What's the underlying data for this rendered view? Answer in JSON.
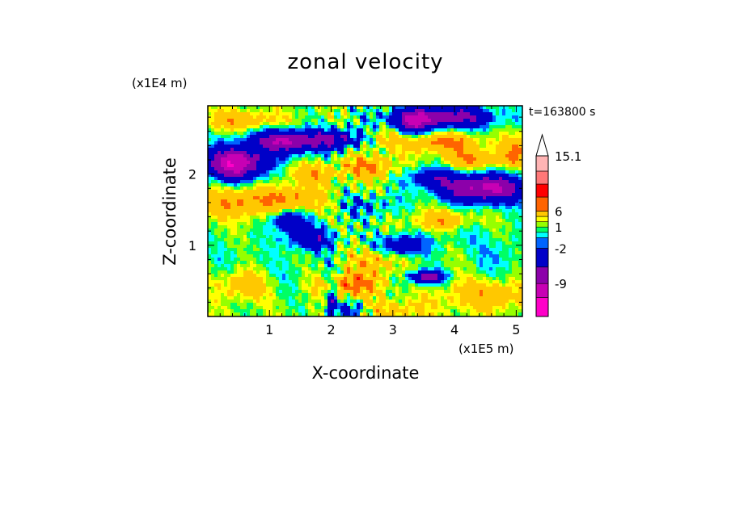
{
  "chart_data": {
    "type": "heatmap",
    "title": "zonal velocity",
    "xlabel": "X-coordinate",
    "ylabel": "Z-coordinate",
    "x_unit": "(x1E5 m)",
    "y_unit": "(x1E4 m)",
    "time_label": "t=163800 s",
    "x_ticks": [
      1,
      2,
      3,
      4,
      5
    ],
    "y_ticks": [
      1,
      2
    ],
    "xlim": [
      0,
      5.1
    ],
    "ylim": [
      0,
      2.96
    ],
    "colorbar": {
      "levels": [
        -15.1,
        -12,
        -9,
        -6,
        -2,
        -1,
        0,
        1,
        2,
        3,
        6,
        9,
        12,
        15.1
      ],
      "colors": [
        "#ff00c8",
        "#c800b4",
        "#8c00aa",
        "#0000c8",
        "#0064ff",
        "#00ffff",
        "#00ff64",
        "#96ff00",
        "#ffff00",
        "#ffc800",
        "#ff6400",
        "#ff0000",
        "#ff7878",
        "#ffb4b4"
      ],
      "labels": [
        {
          "text": "15.1",
          "value": 15.1
        },
        {
          "text": "6",
          "value": 6
        },
        {
          "text": "1",
          "value": 1
        },
        {
          "text": "-2",
          "value": -2
        },
        {
          "text": "-9",
          "value": -9
        }
      ],
      "extend_max": true
    },
    "features": [
      {
        "x": 0.45,
        "z": 2.15,
        "u": -13,
        "sx": 0.35,
        "sz": 0.16
      },
      {
        "x": 1.2,
        "z": 2.45,
        "u": -12,
        "sx": 0.4,
        "sz": 0.12
      },
      {
        "x": 2.1,
        "z": 2.5,
        "u": -7,
        "sx": 0.3,
        "sz": 0.1
      },
      {
        "x": 3.8,
        "z": 2.8,
        "u": -9,
        "sx": 0.6,
        "sz": 0.12
      },
      {
        "x": 3.3,
        "z": 2.7,
        "u": -6,
        "sx": 0.2,
        "sz": 0.12
      },
      {
        "x": 4.5,
        "z": 1.8,
        "u": -11,
        "sx": 0.5,
        "sz": 0.15
      },
      {
        "x": 3.6,
        "z": 1.95,
        "u": -5,
        "sx": 0.3,
        "sz": 0.1
      },
      {
        "x": 1.3,
        "z": 1.35,
        "u": -7,
        "sx": 0.2,
        "sz": 0.1
      },
      {
        "x": 1.65,
        "z": 1.1,
        "u": -6,
        "sx": 0.3,
        "sz": 0.12
      },
      {
        "x": 3.1,
        "z": 1.0,
        "u": -7,
        "sx": 0.3,
        "sz": 0.1
      },
      {
        "x": 3.55,
        "z": 0.55,
        "u": -9,
        "sx": 0.2,
        "sz": 0.07
      },
      {
        "x": 2.0,
        "z": 0.2,
        "u": -6,
        "sx": 0.06,
        "sz": 0.3
      },
      {
        "x": 2.3,
        "z": 0.1,
        "u": -4,
        "sx": 0.2,
        "sz": 0.08
      },
      {
        "x": 2.6,
        "z": 1.55,
        "u": -3,
        "sx": 0.35,
        "sz": 0.12
      },
      {
        "x": 0.35,
        "z": 0.85,
        "u": -1,
        "sx": 0.3,
        "sz": 0.2
      },
      {
        "x": 4.7,
        "z": 0.85,
        "u": -2,
        "sx": 0.3,
        "sz": 0.2
      },
      {
        "x": 4.1,
        "z": 1.15,
        "u": -1.5,
        "sx": 0.3,
        "sz": 0.12
      },
      {
        "x": 0.5,
        "z": 2.75,
        "u": 4,
        "sx": 0.5,
        "sz": 0.1
      },
      {
        "x": 0.9,
        "z": 2.4,
        "u": 3,
        "sx": 0.3,
        "sz": 0.1
      },
      {
        "x": 0.5,
        "z": 1.6,
        "u": 5,
        "sx": 0.4,
        "sz": 0.15
      },
      {
        "x": 1.4,
        "z": 1.65,
        "u": 5,
        "sx": 0.35,
        "sz": 0.12
      },
      {
        "x": 1.7,
        "z": 2.0,
        "u": 4,
        "sx": 0.3,
        "sz": 0.1
      },
      {
        "x": 2.6,
        "z": 2.1,
        "u": 5,
        "sx": 0.3,
        "sz": 0.12
      },
      {
        "x": 3.8,
        "z": 2.45,
        "u": 6,
        "sx": 0.4,
        "sz": 0.1
      },
      {
        "x": 4.3,
        "z": 2.2,
        "u": 5,
        "sx": 0.3,
        "sz": 0.1
      },
      {
        "x": 5.0,
        "z": 2.3,
        "u": 5,
        "sx": 0.2,
        "sz": 0.15
      },
      {
        "x": 3.8,
        "z": 1.35,
        "u": 4,
        "sx": 0.35,
        "sz": 0.1
      },
      {
        "x": 2.3,
        "z": 0.45,
        "u": 6,
        "sx": 0.35,
        "sz": 0.12
      },
      {
        "x": 0.6,
        "z": 0.45,
        "u": 4,
        "sx": 0.3,
        "sz": 0.15
      },
      {
        "x": 4.5,
        "z": 0.3,
        "u": 4,
        "sx": 0.5,
        "sz": 0.15
      },
      {
        "x": 3.0,
        "z": 0.1,
        "u": 3,
        "sx": 0.4,
        "sz": 0.1
      },
      {
        "x": 2.9,
        "z": 2.5,
        "u": 3,
        "sx": 0.2,
        "sz": 0.1
      },
      {
        "x": 1.2,
        "z": 0.6,
        "u": -1.2,
        "sx": 0.4,
        "sz": 0.2
      },
      {
        "x": 2.7,
        "z": 0.8,
        "u": 4,
        "sx": 0.25,
        "sz": 0.15
      }
    ],
    "background_u": 1.2
  }
}
